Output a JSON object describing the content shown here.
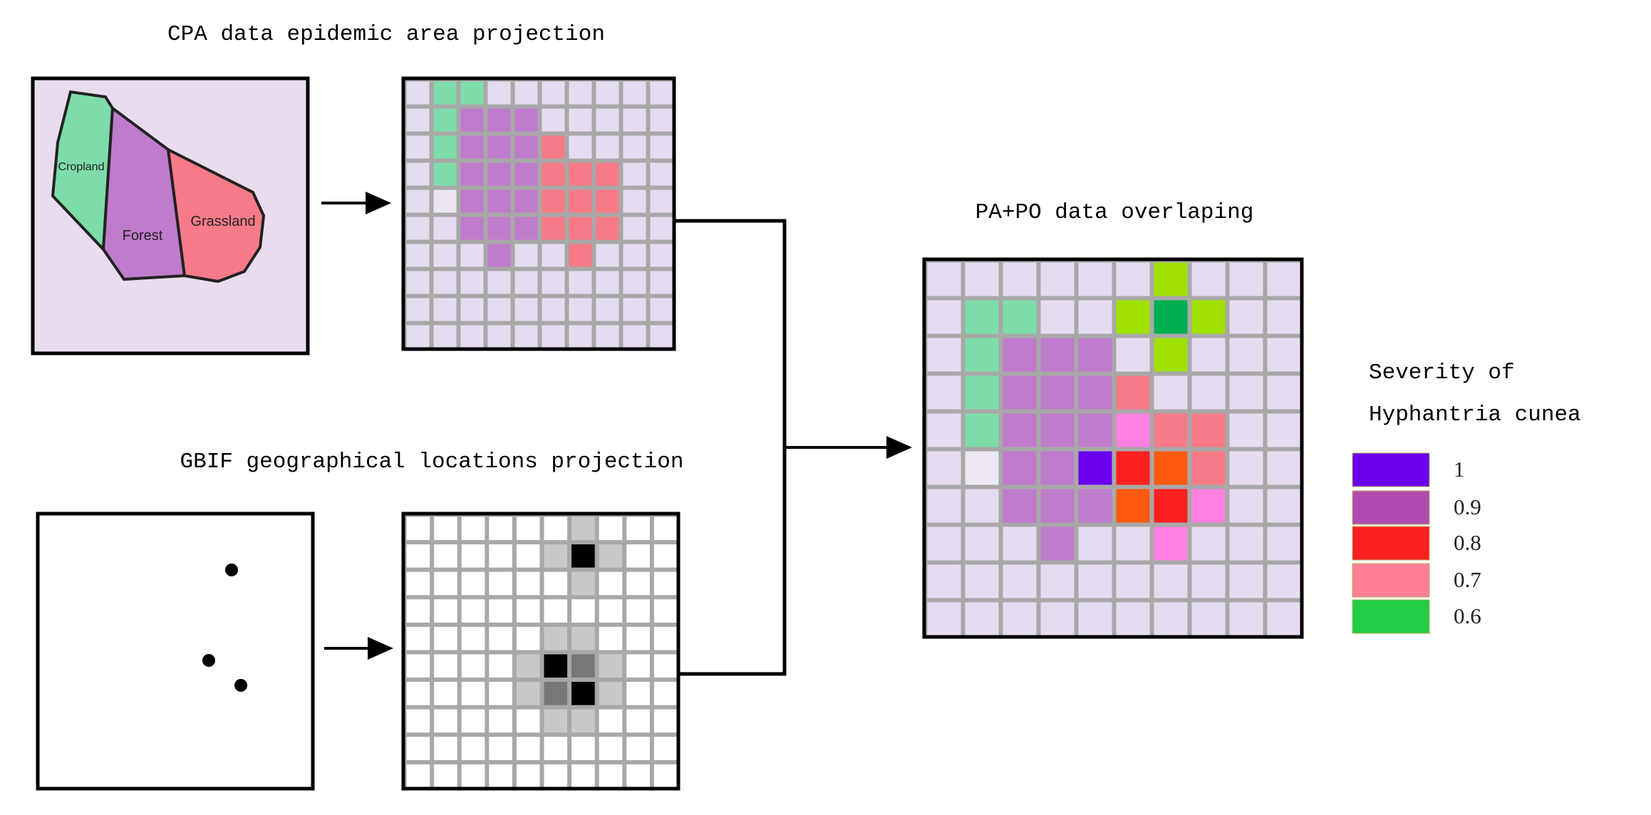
{
  "header": {
    "cpa_title": "CPA data epidemic area projection",
    "gbif_title": "GBIF geographical locations projection",
    "overlap_title": "PA+PO data overlaping"
  },
  "map": {
    "regions": [
      "Cropland",
      "Forest",
      "Grassland"
    ]
  },
  "legend": {
    "title_lines": [
      "Severity of",
      "Hyphantria cunea"
    ],
    "items": [
      {
        "label": "1",
        "color": "#6a00f0"
      },
      {
        "label": "0.9",
        "color": "#b04cb0"
      },
      {
        "label": "0.8",
        "color": "#ff2020"
      },
      {
        "label": "0.7",
        "color": "#ff8094"
      },
      {
        "label": "0.6",
        "color": "#22cc44"
      }
    ]
  }
}
